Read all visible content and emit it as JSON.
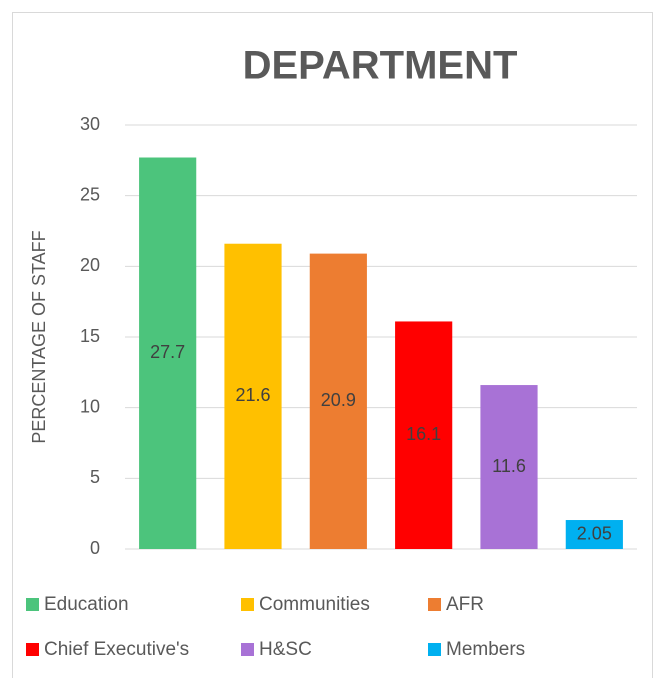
{
  "chart_data": {
    "type": "bar",
    "title": "DEPARTMENT",
    "y_label": "PERCENTAGE OF STAFF",
    "categories": [
      "Education",
      "Communities",
      "AFR",
      "Chief Executive's",
      "H&SC",
      "Members"
    ],
    "values": [
      27.7,
      21.6,
      20.9,
      16.1,
      11.6,
      2.05
    ],
    "colors": [
      "#4cc47c",
      "#ffc000",
      "#ed7d31",
      "#ff0000",
      "#a872d6",
      "#00b0f0"
    ],
    "ylim": [
      0,
      30
    ],
    "yticks": [
      0,
      5,
      10,
      15,
      20,
      25,
      30
    ],
    "grid": true,
    "legend": "bottom",
    "data_labels": true
  }
}
